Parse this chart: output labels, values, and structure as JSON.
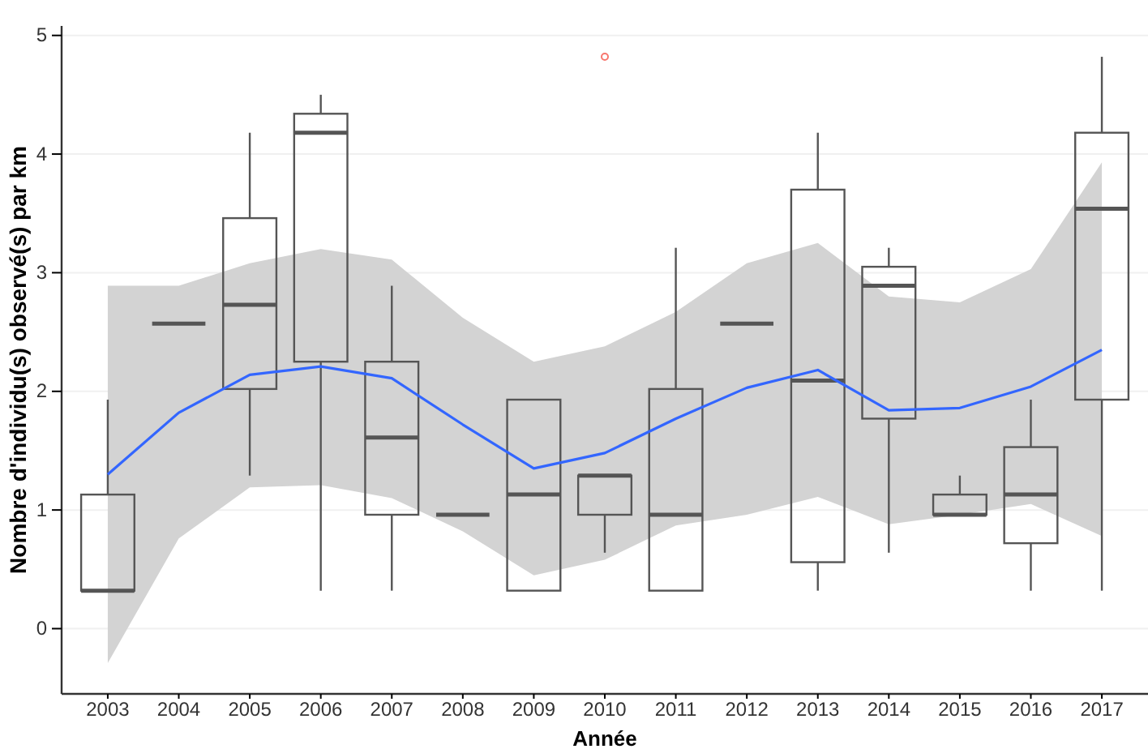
{
  "chart_data": {
    "type": "box",
    "xlabel": "Année",
    "ylabel": "Nombre d'individu(s) observé(s) par km",
    "categories": [
      "2003",
      "2004",
      "2005",
      "2006",
      "2007",
      "2008",
      "2009",
      "2010",
      "2011",
      "2012",
      "2013",
      "2014",
      "2015",
      "2016",
      "2017"
    ],
    "ylim": [
      -0.55,
      5.08
    ],
    "yticks": [
      0,
      1,
      2,
      3,
      4,
      5
    ],
    "grid": "y",
    "series": [
      {
        "color": "#555555",
        "boxes": [
          {
            "low": 0.32,
            "q1": 0.32,
            "median": 0.32,
            "q3": 1.13,
            "high": 1.93
          },
          {
            "low": 2.57,
            "q1": 2.57,
            "median": 2.57,
            "q3": 2.57,
            "high": 2.57
          },
          {
            "low": 1.29,
            "q1": 2.02,
            "median": 2.73,
            "q3": 3.46,
            "high": 4.18
          },
          {
            "low": 0.32,
            "q1": 2.25,
            "median": 4.18,
            "q3": 4.34,
            "high": 4.5
          },
          {
            "low": 0.32,
            "q1": 0.96,
            "median": 1.61,
            "q3": 2.25,
            "high": 2.89
          },
          {
            "low": 0.96,
            "q1": 0.96,
            "median": 0.96,
            "q3": 0.96,
            "high": 0.96
          },
          {
            "low": 0.32,
            "q1": 0.32,
            "median": 1.13,
            "q3": 1.93,
            "high": 1.93
          },
          {
            "low": 0.64,
            "q1": 0.96,
            "median": 1.29,
            "q3": 1.29,
            "high": 1.29,
            "outliers": [
              4.82
            ]
          },
          {
            "low": 0.32,
            "q1": 0.32,
            "median": 0.96,
            "q3": 2.02,
            "high": 3.21
          },
          {
            "low": 2.57,
            "q1": 2.57,
            "median": 2.57,
            "q3": 2.57,
            "high": 2.57
          },
          {
            "low": 0.32,
            "q1": 0.56,
            "median": 2.09,
            "q3": 3.7,
            "high": 4.18
          },
          {
            "low": 0.64,
            "q1": 1.77,
            "median": 2.89,
            "q3": 3.05,
            "high": 3.21
          },
          {
            "low": 0.96,
            "q1": 0.96,
            "median": 0.96,
            "q3": 1.13,
            "high": 1.29
          },
          {
            "low": 0.32,
            "q1": 0.72,
            "median": 1.13,
            "q3": 1.53,
            "high": 1.93
          },
          {
            "low": 0.32,
            "q1": 1.93,
            "median": 3.54,
            "q3": 4.18,
            "high": 4.82
          }
        ]
      },
      {
        "type": "line",
        "color": "#3366ff",
        "marker": "none",
        "values": [
          1.3,
          1.82,
          2.14,
          2.21,
          2.11,
          1.72,
          1.35,
          1.48,
          1.77,
          2.03,
          2.18,
          1.84,
          1.86,
          2.04,
          2.35
        ],
        "lower": [
          -0.29,
          0.76,
          1.19,
          1.21,
          1.1,
          0.82,
          0.45,
          0.58,
          0.87,
          0.96,
          1.11,
          0.88,
          0.96,
          1.05,
          0.78
        ],
        "upper": [
          2.89,
          2.89,
          3.08,
          3.2,
          3.11,
          2.62,
          2.25,
          2.38,
          2.67,
          3.08,
          3.25,
          2.8,
          2.75,
          3.03,
          3.93
        ]
      }
    ]
  }
}
